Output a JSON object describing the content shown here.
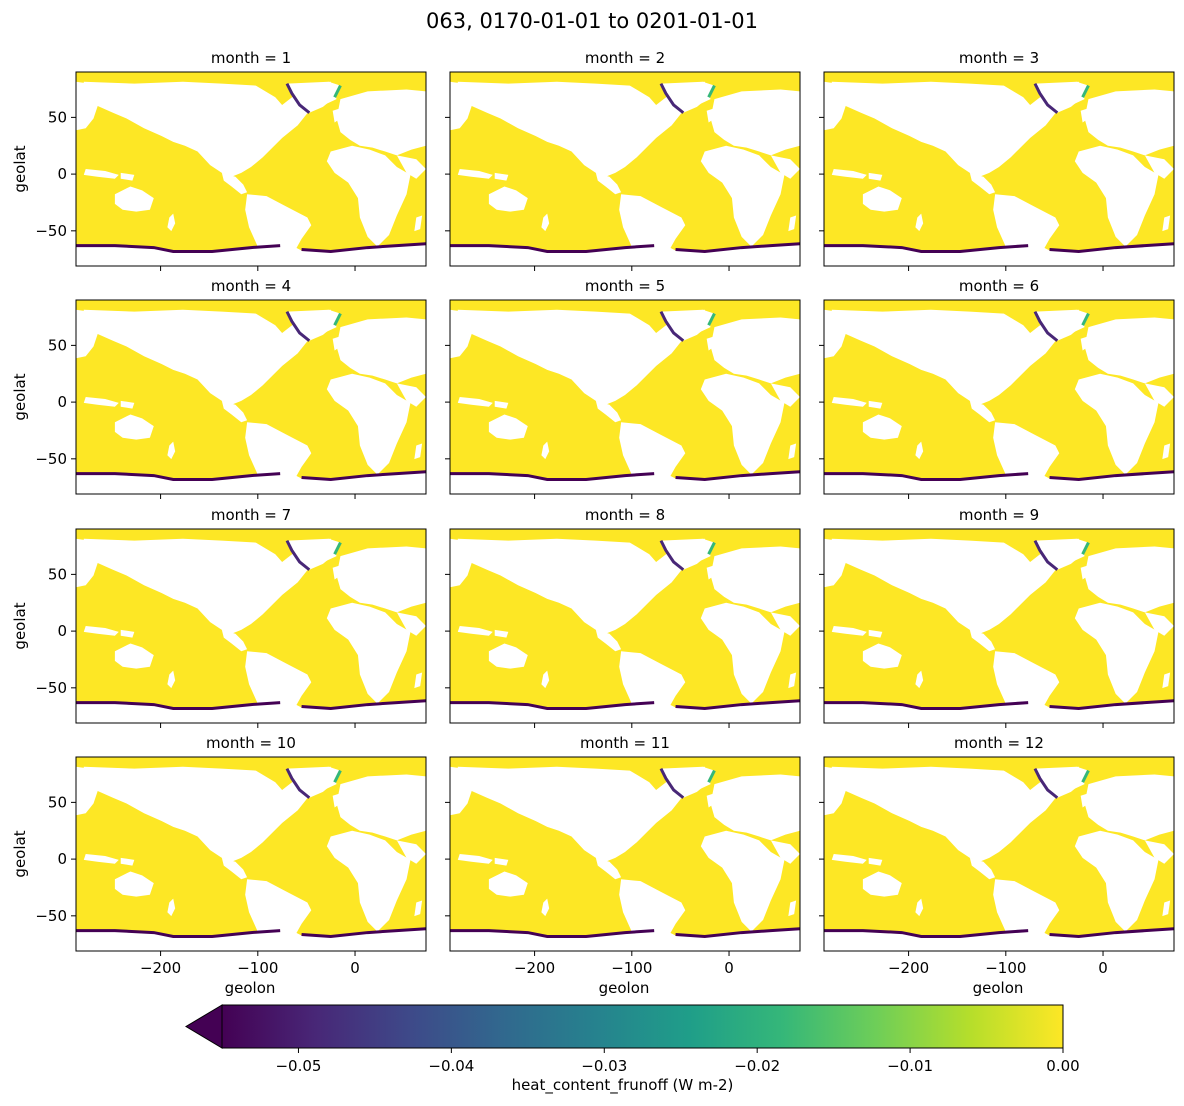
{
  "figure": {
    "title": "063, 0170-01-01 to 0201-01-01"
  },
  "colors": {
    "background": "#ffffff",
    "ocean_max": "#fde725",
    "land": "#ffffff",
    "colormap": "viridis",
    "viridis_stops": [
      "#440154",
      "#482777",
      "#3e4989",
      "#31688e",
      "#26828e",
      "#1f9e89",
      "#35b779",
      "#6ece58",
      "#b5de2b",
      "#fde725"
    ]
  },
  "chart_data": {
    "type": "heatmap",
    "variable": "heat_content_frunoff",
    "facet": "month",
    "panels": [
      {
        "label": "month = 1",
        "month": 1
      },
      {
        "label": "month = 2",
        "month": 2
      },
      {
        "label": "month = 3",
        "month": 3
      },
      {
        "label": "month = 4",
        "month": 4
      },
      {
        "label": "month = 5",
        "month": 5
      },
      {
        "label": "month = 6",
        "month": 6
      },
      {
        "label": "month = 7",
        "month": 7
      },
      {
        "label": "month = 8",
        "month": 8
      },
      {
        "label": "month = 9",
        "month": 9
      },
      {
        "label": "month = 10",
        "month": 10
      },
      {
        "label": "month = 11",
        "month": 11
      },
      {
        "label": "month = 12",
        "month": 12
      }
    ],
    "xlabel": "geolon",
    "ylabel": "geolat",
    "xlim": [
      -287,
      73
    ],
    "ylim": [
      -81,
      90
    ],
    "xticks": [
      -200,
      -100,
      0
    ],
    "xtick_labels": [
      "−200",
      "−100",
      "0"
    ],
    "yticks": [
      50,
      0,
      -50
    ],
    "ytick_labels": [
      "50",
      "0",
      "−50"
    ],
    "colorbar": {
      "label": "heat_content_frunoff (W m-2)",
      "vmin": -0.055,
      "vmax": 0.0,
      "extend": "min",
      "ticks": [
        -0.05,
        -0.04,
        -0.03,
        -0.02,
        -0.01,
        0.0
      ],
      "tick_labels": [
        "−0.05",
        "−0.04",
        "−0.03",
        "−0.02",
        "−0.01",
        "0.00"
      ]
    }
  }
}
